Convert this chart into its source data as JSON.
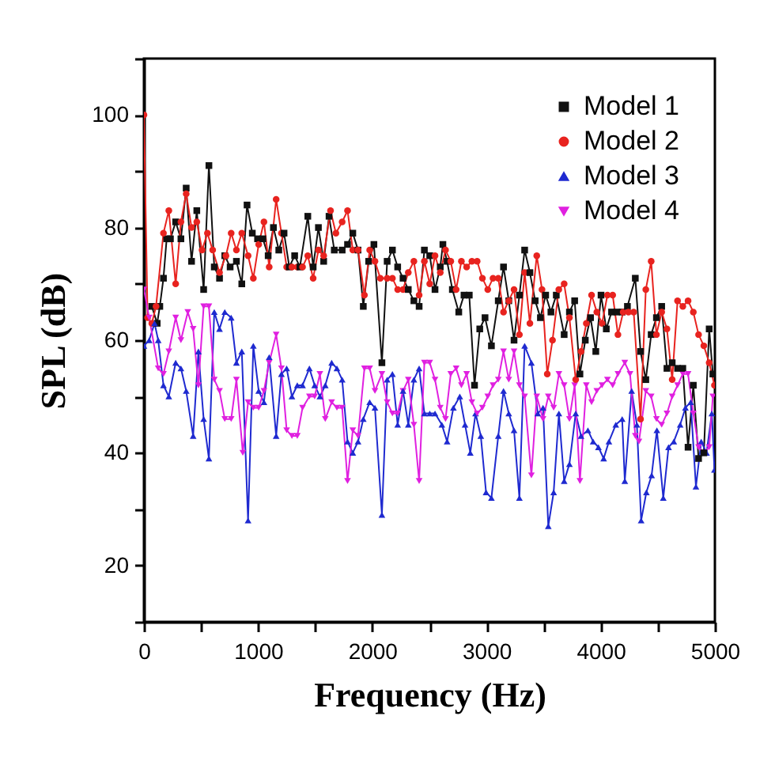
{
  "chart_data": {
    "type": "line",
    "xlabel": "Frequency (Hz)",
    "ylabel": "SPL (dB)",
    "xlim": [
      0,
      5000
    ],
    "ylim": [
      10,
      110
    ],
    "xticks": [
      0,
      {
        "value": 500,
        "label": null
      },
      1000,
      {
        "value": 1500,
        "label": null
      },
      2000,
      {
        "value": 2500,
        "label": null
      },
      3000,
      {
        "value": 3500,
        "label": null
      },
      4000,
      {
        "value": 4500,
        "label": null
      },
      5000
    ],
    "yticks": [
      {
        "value": 10,
        "label": null
      },
      20,
      {
        "value": 30,
        "label": null
      },
      40,
      {
        "value": 50,
        "label": null
      },
      60,
      {
        "value": 70,
        "label": null
      },
      80,
      {
        "value": 90,
        "label": null
      },
      100,
      {
        "value": 110,
        "label": null
      }
    ],
    "grid": false,
    "legend": "top right",
    "line_style": "solid",
    "series": [
      {
        "name": "Model 1",
        "color": "#111111",
        "marker": "square",
        "x": [
          69,
          116,
          139,
          171,
          199,
          232,
          278,
          324,
          370,
          417,
          463,
          523,
          569,
          616,
          662,
          708,
          755,
          810,
          857,
          903,
          949,
          995,
          1042,
          1088,
          1134,
          1181,
          1227,
          1273,
          1320,
          1366,
          1435,
          1482,
          1528,
          1574,
          1621,
          1667,
          1736,
          1783,
          1829,
          1875,
          1921,
          1968,
          2014,
          2084,
          2130,
          2176,
          2222,
          2269,
          2315,
          2364,
          2410,
          2456,
          2503,
          2549,
          2595,
          2618,
          2655,
          2701,
          2757,
          2803,
          2849,
          2895,
          2941,
          2987,
          3043,
          3103,
          3149,
          3195,
          3241,
          3288,
          3334,
          3380,
          3426,
          3472,
          3518,
          3564,
          3611,
          3680,
          3726,
          3772,
          3818,
          3865,
          3911,
          3957,
          4003,
          4049,
          4095,
          4142,
          4188,
          4234,
          4303,
          4349,
          4395,
          4442,
          4488,
          4534,
          4580,
          4626,
          4673,
          4719,
          4765,
          4811,
          4857,
          4903,
          4950,
          4982
        ],
        "values": [
          66,
          63,
          66,
          71,
          78,
          78,
          81,
          78,
          87,
          74,
          83,
          69,
          91,
          73,
          71,
          75,
          73,
          74,
          70,
          84,
          79,
          78,
          78,
          75,
          80,
          76,
          79,
          73,
          75,
          73,
          82,
          73,
          80,
          74,
          82,
          76,
          76,
          77,
          79,
          76,
          66,
          74,
          77,
          56,
          74,
          76,
          73,
          71,
          69,
          67,
          66,
          76,
          75,
          69,
          73,
          77,
          74,
          69,
          65,
          68,
          68,
          52,
          62,
          64,
          59,
          67,
          73,
          67,
          60,
          68,
          76,
          72,
          67,
          64,
          68,
          65,
          68,
          61,
          65,
          67,
          54,
          60,
          64,
          58,
          68,
          62,
          65,
          65,
          65,
          66,
          71,
          58,
          53,
          61,
          64,
          66,
          55,
          56,
          55,
          55,
          41,
          52,
          39,
          40,
          62,
          54
        ]
      },
      {
        "name": "Model 2",
        "color": "#e8231f",
        "marker": "circle",
        "x": [
          0,
          32,
          69,
          106,
          171,
          218,
          278,
          324,
          370,
          417,
          463,
          509,
          556,
          602,
          662,
          718,
          764,
          810,
          857,
          912,
          958,
          1005,
          1051,
          1097,
          1158,
          1204,
          1250,
          1296,
          1343,
          1389,
          1435,
          1482,
          1528,
          1574,
          1634,
          1681,
          1736,
          1783,
          1829,
          1875,
          1931,
          1977,
          2023,
          2070,
          2130,
          2176,
          2222,
          2269,
          2315,
          2364,
          2410,
          2456,
          2503,
          2549,
          2595,
          2641,
          2687,
          2734,
          2780,
          2826,
          2872,
          2918,
          2964,
          3011,
          3057,
          3103,
          3149,
          3195,
          3241,
          3288,
          3334,
          3380,
          3440,
          3486,
          3532,
          3578,
          3633,
          3680,
          3726,
          3781,
          3828,
          3874,
          3920,
          3966,
          4012,
          4059,
          4105,
          4151,
          4197,
          4243,
          4289,
          4349,
          4395,
          4442,
          4488,
          4534,
          4580,
          4626,
          4673,
          4719,
          4765,
          4811,
          4857,
          4903,
          4950,
          4996
        ],
        "values": [
          100,
          64,
          63,
          66,
          79,
          83,
          70,
          81,
          86,
          80,
          81,
          76,
          79,
          76,
          72,
          75,
          79,
          76,
          79,
          75,
          71,
          77,
          81,
          73,
          85,
          79,
          73,
          73,
          73,
          73,
          75,
          71,
          76,
          75,
          83,
          79,
          81,
          83,
          76,
          76,
          68,
          76,
          74,
          71,
          71,
          71,
          69,
          69,
          72,
          74,
          68,
          74,
          70,
          75,
          72,
          76,
          74,
          69,
          74,
          73,
          74,
          74,
          71,
          69,
          71,
          71,
          65,
          67,
          69,
          61,
          72,
          63,
          75,
          69,
          54,
          60,
          69,
          70,
          64,
          53,
          58,
          63,
          68,
          65,
          63,
          68,
          68,
          61,
          65,
          65,
          65,
          46,
          69,
          74,
          61,
          65,
          62,
          53,
          67,
          66,
          67,
          65,
          61,
          59,
          56,
          52
        ]
      },
      {
        "name": "Model 3",
        "color": "#1f2ad0",
        "marker": "triangle",
        "x": [
          0,
          46,
          93,
          125,
          171,
          218,
          278,
          324,
          370,
          431,
          477,
          523,
          569,
          616,
          662,
          708,
          764,
          810,
          857,
          912,
          958,
          1005,
          1051,
          1097,
          1158,
          1204,
          1250,
          1296,
          1343,
          1389,
          1449,
          1495,
          1541,
          1588,
          1644,
          1690,
          1736,
          1783,
          1829,
          1875,
          1921,
          1977,
          2023,
          2084,
          2130,
          2176,
          2222,
          2269,
          2315,
          2364,
          2410,
          2456,
          2503,
          2549,
          2609,
          2655,
          2710,
          2766,
          2812,
          2858,
          2904,
          2950,
          2996,
          3043,
          3103,
          3149,
          3195,
          3241,
          3288,
          3334,
          3393,
          3449,
          3495,
          3541,
          3588,
          3634,
          3680,
          3726,
          3781,
          3828,
          3888,
          3934,
          3980,
          4026,
          4072,
          4132,
          4188,
          4211,
          4271,
          4317,
          4354,
          4400,
          4446,
          4492,
          4548,
          4594,
          4640,
          4696,
          4742,
          4788,
          4834,
          4880,
          4927,
          4973,
          4996
        ],
        "values": [
          59,
          60,
          63,
          60,
          52,
          50,
          56,
          55,
          51,
          43,
          58,
          46,
          39,
          65,
          62,
          65,
          64,
          56,
          58,
          28,
          59,
          51,
          49,
          57,
          43,
          54,
          55,
          50,
          52,
          52,
          55,
          52,
          50,
          52,
          56,
          55,
          53,
          42,
          40,
          42,
          46,
          49,
          48,
          29,
          53,
          54,
          45,
          51,
          45,
          53,
          55,
          47,
          47,
          47,
          45,
          42,
          48,
          50,
          45,
          40,
          47,
          43,
          33,
          32,
          43,
          51,
          47,
          44,
          32,
          59,
          56,
          47,
          48,
          27,
          33,
          47,
          35,
          38,
          47,
          43,
          44,
          42,
          41,
          39,
          42,
          45,
          46,
          35,
          51,
          45,
          28,
          33,
          36,
          44,
          32,
          41,
          42,
          45,
          48,
          49,
          34,
          42,
          40,
          47,
          37
        ]
      },
      {
        "name": "Model 4",
        "color": "#e020e0",
        "marker": "triangle-down",
        "x": [
          0,
          46,
          125,
          171,
          218,
          278,
          324,
          384,
          431,
          477,
          523,
          569,
          616,
          662,
          708,
          764,
          810,
          866,
          912,
          958,
          1005,
          1051,
          1097,
          1158,
          1204,
          1250,
          1296,
          1343,
          1389,
          1449,
          1495,
          1541,
          1588,
          1644,
          1690,
          1736,
          1783,
          1829,
          1875,
          1931,
          1977,
          2023,
          2084,
          2130,
          2176,
          2222,
          2269,
          2315,
          2364,
          2410,
          2456,
          2503,
          2549,
          2595,
          2641,
          2687,
          2734,
          2780,
          2826,
          2872,
          2918,
          2964,
          3011,
          3057,
          3103,
          3149,
          3195,
          3241,
          3288,
          3334,
          3393,
          3440,
          3495,
          3541,
          3588,
          3634,
          3680,
          3726,
          3772,
          3818,
          3874,
          3920,
          3966,
          4012,
          4059,
          4105,
          4151,
          4211,
          4257,
          4303,
          4335,
          4395,
          4442,
          4488,
          4534,
          4580,
          4626,
          4673,
          4719,
          4765,
          4811,
          4857,
          4903,
          4950,
          4982
        ],
        "values": [
          69,
          64,
          55,
          54,
          58,
          64,
          60,
          65,
          62,
          52,
          66,
          66,
          53,
          51,
          46,
          46,
          53,
          40,
          49,
          48,
          48,
          51,
          56,
          61,
          55,
          44,
          43,
          43,
          48,
          50,
          50,
          54,
          46,
          49,
          48,
          48,
          35,
          44,
          43,
          55,
          55,
          51,
          54,
          49,
          47,
          47,
          51,
          53,
          45,
          35,
          56,
          56,
          53,
          48,
          46,
          54,
          55,
          52,
          54,
          49,
          47,
          48,
          50,
          52,
          53,
          58,
          53,
          58,
          52,
          50,
          36,
          50,
          46,
          50,
          48,
          54,
          52,
          46,
          52,
          35,
          52,
          49,
          51,
          52,
          53,
          52,
          54,
          56,
          54,
          43,
          42,
          51,
          50,
          46,
          45,
          47,
          50,
          52,
          54,
          54,
          47,
          41,
          40,
          41,
          50
        ]
      }
    ]
  }
}
